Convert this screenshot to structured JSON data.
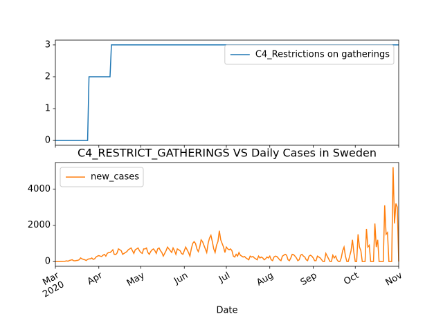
{
  "chart_data": [
    {
      "type": "line",
      "xlim": [
        0,
        245
      ],
      "ylim": [
        -0.15,
        3.15
      ],
      "yticks": [
        0,
        1,
        2,
        3
      ],
      "legend": "upper right",
      "series": [
        {
          "name": "C4_Restrictions on gatherings",
          "color": "#1f77b4",
          "values": [
            0,
            0,
            0,
            0,
            0,
            0,
            0,
            0,
            0,
            0,
            0,
            0,
            0,
            0,
            0,
            0,
            0,
            0,
            0,
            0,
            0,
            0,
            0,
            0,
            2,
            2,
            2,
            2,
            2,
            2,
            2,
            2,
            2,
            2,
            2,
            2,
            2,
            2,
            2,
            2,
            3,
            3,
            3,
            3,
            3,
            3,
            3,
            3,
            3,
            3,
            3,
            3,
            3,
            3,
            3,
            3,
            3,
            3,
            3,
            3,
            3,
            3,
            3,
            3,
            3,
            3,
            3,
            3,
            3,
            3,
            3,
            3,
            3,
            3,
            3,
            3,
            3,
            3,
            3,
            3,
            3,
            3,
            3,
            3,
            3,
            3,
            3,
            3,
            3,
            3,
            3,
            3,
            3,
            3,
            3,
            3,
            3,
            3,
            3,
            3,
            3,
            3,
            3,
            3,
            3,
            3,
            3,
            3,
            3,
            3,
            3,
            3,
            3,
            3,
            3,
            3,
            3,
            3,
            3,
            3,
            3,
            3,
            3,
            3,
            3,
            3,
            3,
            3,
            3,
            3,
            3,
            3,
            3,
            3,
            3,
            3,
            3,
            3,
            3,
            3,
            3,
            3,
            3,
            3,
            3,
            3,
            3,
            3,
            3,
            3,
            3,
            3,
            3,
            3,
            3,
            3,
            3,
            3,
            3,
            3,
            3,
            3,
            3,
            3,
            3,
            3,
            3,
            3,
            3,
            3,
            3,
            3,
            3,
            3,
            3,
            3,
            3,
            3,
            3,
            3,
            3,
            3,
            3,
            3,
            3,
            3,
            3,
            3,
            3,
            3,
            3,
            3,
            3,
            3,
            3,
            3,
            3,
            3,
            3,
            3,
            3,
            3,
            3,
            3,
            3,
            3,
            3,
            3,
            3,
            3,
            3,
            3,
            3,
            3,
            3,
            3,
            3,
            3,
            3,
            3,
            3,
            3,
            3,
            3,
            3,
            3,
            3,
            3,
            3,
            3,
            3,
            3,
            3,
            3,
            3,
            3,
            3,
            3,
            3,
            3,
            3,
            3,
            3,
            3,
            3,
            3
          ]
        }
      ]
    },
    {
      "type": "line",
      "title": "C4_RESTRICT_GATHERINGS VS Daily Cases in Sweden",
      "xlabel": "Date",
      "xlim": [
        0,
        245
      ],
      "xticks": [
        {
          "value": 0,
          "label": "Mar\n2020"
        },
        {
          "value": 31,
          "label": "Apr"
        },
        {
          "value": 61,
          "label": "May"
        },
        {
          "value": 92,
          "label": "Jun"
        },
        {
          "value": 122,
          "label": "Jul"
        },
        {
          "value": 153,
          "label": "Aug"
        },
        {
          "value": 184,
          "label": "Sep"
        },
        {
          "value": 214,
          "label": "Oct"
        },
        {
          "value": 245,
          "label": "Nov"
        }
      ],
      "ylim": [
        -260,
        5460
      ],
      "yticks": [
        0,
        2000,
        4000
      ],
      "legend": "upper left",
      "series": [
        {
          "name": "new_cases",
          "color": "#ff7f0e",
          "values": [
            0,
            0,
            0,
            1,
            5,
            5,
            10,
            20,
            40,
            20,
            60,
            80,
            100,
            50,
            40,
            60,
            70,
            100,
            200,
            150,
            120,
            100,
            60,
            120,
            150,
            150,
            200,
            120,
            150,
            250,
            300,
            330,
            300,
            280,
            350,
            400,
            300,
            450,
            500,
            500,
            560,
            650,
            400,
            380,
            470,
            700,
            650,
            600,
            400,
            450,
            500,
            550,
            650,
            700,
            750,
            600,
            450,
            650,
            700,
            750,
            600,
            500,
            450,
            700,
            700,
            750,
            500,
            400,
            550,
            650,
            700,
            600,
            450,
            700,
            750,
            600,
            500,
            300,
            450,
            600,
            800,
            700,
            600,
            500,
            750,
            600,
            400,
            700,
            650,
            600,
            450,
            400,
            600,
            800,
            650,
            500,
            300,
            700,
            1000,
            1100,
            1000,
            700,
            550,
            800,
            1200,
            1100,
            900,
            700,
            500,
            1000,
            1300,
            1450,
            1100,
            700,
            500,
            900,
            1100,
            1700,
            1200,
            1000,
            800,
            500,
            800,
            700,
            650,
            700,
            600,
            300,
            250,
            400,
            300,
            500,
            350,
            300,
            250,
            280,
            200,
            150,
            100,
            300,
            250,
            280,
            200,
            150,
            100,
            300,
            200,
            250,
            200,
            100,
            150,
            250,
            200,
            300,
            100,
            50,
            250,
            300,
            280,
            200,
            100,
            50,
            300,
            350,
            400,
            350,
            100,
            50,
            200,
            400,
            380,
            300,
            200,
            50,
            100,
            350,
            400,
            300,
            250,
            100,
            50,
            300,
            350,
            300,
            200,
            50,
            50,
            300,
            250,
            200,
            100,
            0,
            0,
            450,
            300,
            150,
            0,
            0,
            350,
            200,
            300,
            100,
            0,
            0,
            200,
            600,
            800,
            300,
            0,
            0,
            300,
            600,
            1200,
            500,
            0,
            0,
            1500,
            800,
            600,
            0,
            0,
            0,
            1800,
            800,
            900,
            0,
            0,
            0,
            2100,
            800,
            1200,
            0,
            0,
            0,
            0,
            3100,
            1500,
            1600,
            0,
            0,
            0,
            5200,
            2100,
            3200,
            3000,
            0
          ]
        }
      ]
    }
  ]
}
